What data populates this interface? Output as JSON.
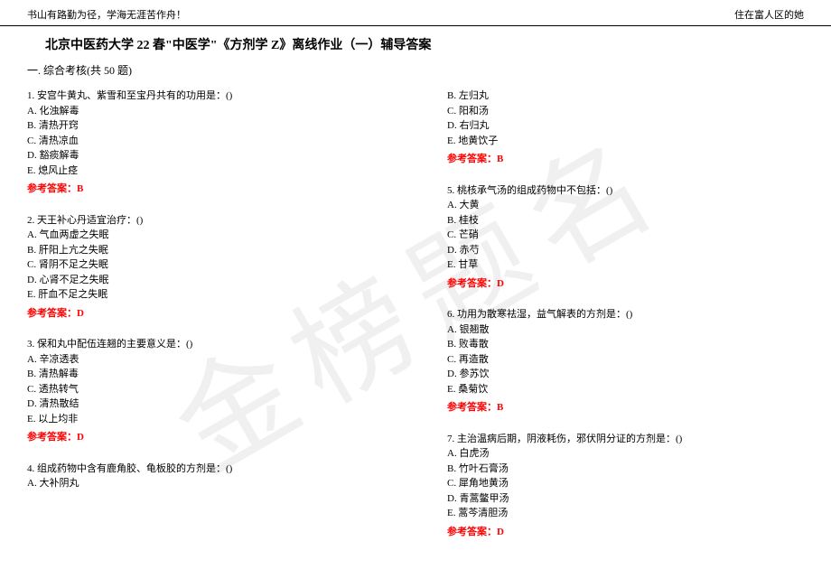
{
  "header": {
    "left": "书山有路勤为径，学海无涯苦作舟！",
    "right": "住在富人区的她"
  },
  "title": "北京中医药大学 22 春\"中医学\"《方剂学 Z》离线作业（一）辅导答案",
  "section_header": "一. 综合考核(共 50 题)",
  "watermark_text": "金榜题名",
  "answer_label": "参考答案：",
  "answer_color": "#ff0000",
  "text_color": "#000000",
  "background_color": "#ffffff",
  "font_size_body": 11,
  "font_size_title": 14,
  "left_column": [
    {
      "q": "1. 安宫牛黄丸、紫雪和至宝丹共有的功用是：()",
      "options": [
        "A. 化浊解毒",
        "B. 清热开窍",
        "C. 清热凉血",
        "D. 豁痰解毒",
        "E. 熄风止痉"
      ],
      "answer": "B"
    },
    {
      "q": "2. 天王补心丹适宜治疗：()",
      "options": [
        "A. 气血两虚之失眠",
        "B. 肝阳上亢之失眠",
        "C. 肾阴不足之失眠",
        "D. 心肾不足之失眠",
        "E. 肝血不足之失眠"
      ],
      "answer": "D"
    },
    {
      "q": "3. 保和丸中配伍连翘的主要意义是：()",
      "options": [
        "A. 辛凉透表",
        "B. 清热解毒",
        "C. 透热转气",
        "D. 清热散结",
        "E. 以上均非"
      ],
      "answer": "D"
    },
    {
      "q": "4. 组成药物中含有鹿角胶、龟板胶的方剂是：()",
      "options": [
        "A. 大补阴丸"
      ],
      "answer": null
    }
  ],
  "right_column": [
    {
      "q": null,
      "options": [
        "B. 左归丸",
        "C. 阳和汤",
        "D. 右归丸",
        "E. 地黄饮子"
      ],
      "answer": "B"
    },
    {
      "q": "5. 桃核承气汤的组成药物中不包括：()",
      "options": [
        "A. 大黄",
        "B. 桂枝",
        "C. 芒硝",
        "D. 赤芍",
        "E. 甘草"
      ],
      "answer": "D"
    },
    {
      "q": "6. 功用为散寒祛湿，益气解表的方剂是：()",
      "options": [
        "A. 银翘散",
        "B. 败毒散",
        "C. 再造散",
        "D. 参苏饮",
        "E. 桑菊饮"
      ],
      "answer": "B"
    },
    {
      "q": "7. 主治温病后期，阴液耗伤，邪伏阴分证的方剂是：()",
      "options": [
        "A. 白虎汤",
        "B. 竹叶石膏汤",
        "C. 犀角地黄汤",
        "D. 青蒿鳖甲汤",
        "E. 蒿芩清胆汤"
      ],
      "answer": "D"
    }
  ]
}
